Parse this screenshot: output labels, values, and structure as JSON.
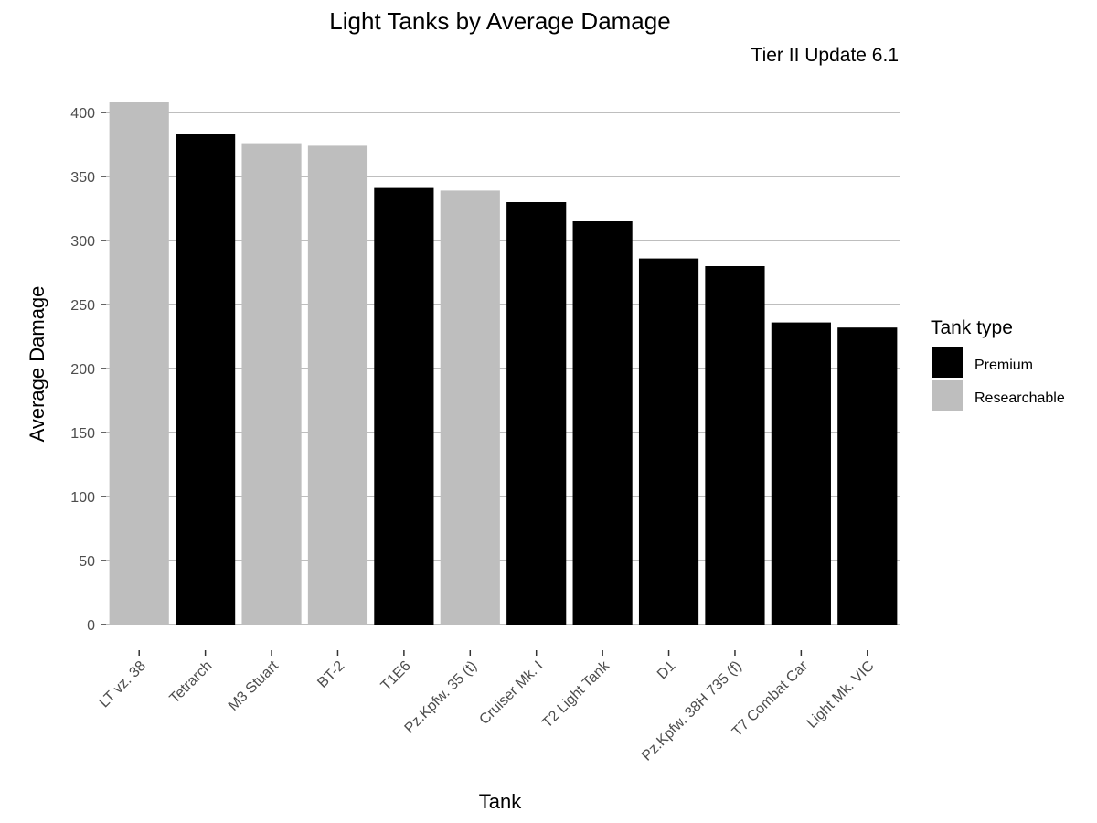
{
  "chart_data": {
    "type": "bar",
    "title": "Light Tanks by Average Damage",
    "subtitle": "Tier II Update 6.1",
    "xlabel": "Tank",
    "ylabel": "Average Damage",
    "ylim": [
      0,
      420
    ],
    "yticks": [
      0,
      50,
      100,
      150,
      200,
      250,
      300,
      350,
      400
    ],
    "grid": "horizontal",
    "legend": {
      "title": "Tank type",
      "placement": "right",
      "entries": [
        {
          "label": "Premium",
          "color": "#000000"
        },
        {
          "label": "Researchable",
          "color": "#bebebe"
        }
      ]
    },
    "categories": [
      "LT vz. 38",
      "Tetrarch",
      "M3 Stuart",
      "BT-2",
      "T1E6",
      "Pz.Kpfw. 35 (t)",
      "Cruiser Mk. I",
      "T2 Light Tank",
      "D1",
      "Pz.Kpfw. 38H 735 (f)",
      "T7 Combat Car",
      "Light Mk. VIC"
    ],
    "values": [
      408,
      383,
      376,
      374,
      341,
      339,
      330,
      315,
      286,
      280,
      236,
      232
    ],
    "types": [
      "Researchable",
      "Premium",
      "Researchable",
      "Researchable",
      "Premium",
      "Researchable",
      "Premium",
      "Premium",
      "Premium",
      "Premium",
      "Premium",
      "Premium"
    ]
  }
}
